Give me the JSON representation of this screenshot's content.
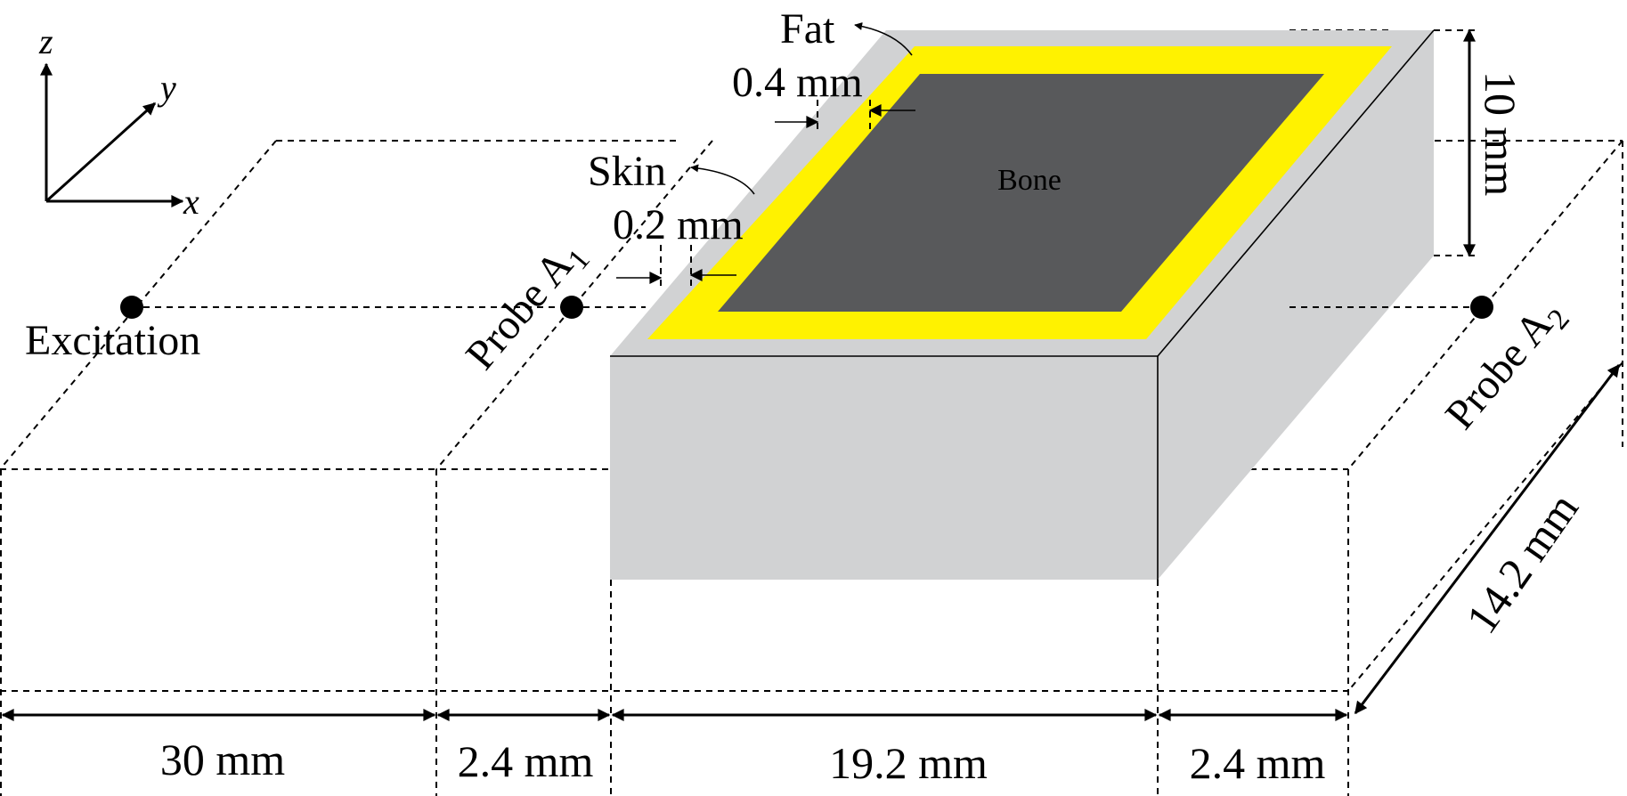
{
  "axes": {
    "z": "z",
    "y": "y",
    "x": "x"
  },
  "materials": {
    "fat": "Fat",
    "skin": "Skin",
    "bone": "Bone"
  },
  "thickness": {
    "fat": "0.4 mm",
    "skin": "0.2 mm"
  },
  "points": {
    "excitation": "Excitation",
    "probe_a1_text": "Probe A",
    "probe_a1_sub": "1",
    "probe_a2_text": "Probe A",
    "probe_a2_sub": "2"
  },
  "dimensions": {
    "height": "10 mm",
    "depth": "14.2 mm",
    "bottom": [
      "30 mm",
      "2.4 mm",
      "19.2 mm",
      "2.4 mm"
    ]
  },
  "colors": {
    "tissue_gray": "#d1d2d3",
    "fat_yellow": "#fff200",
    "bone_dark": "#58595b"
  }
}
